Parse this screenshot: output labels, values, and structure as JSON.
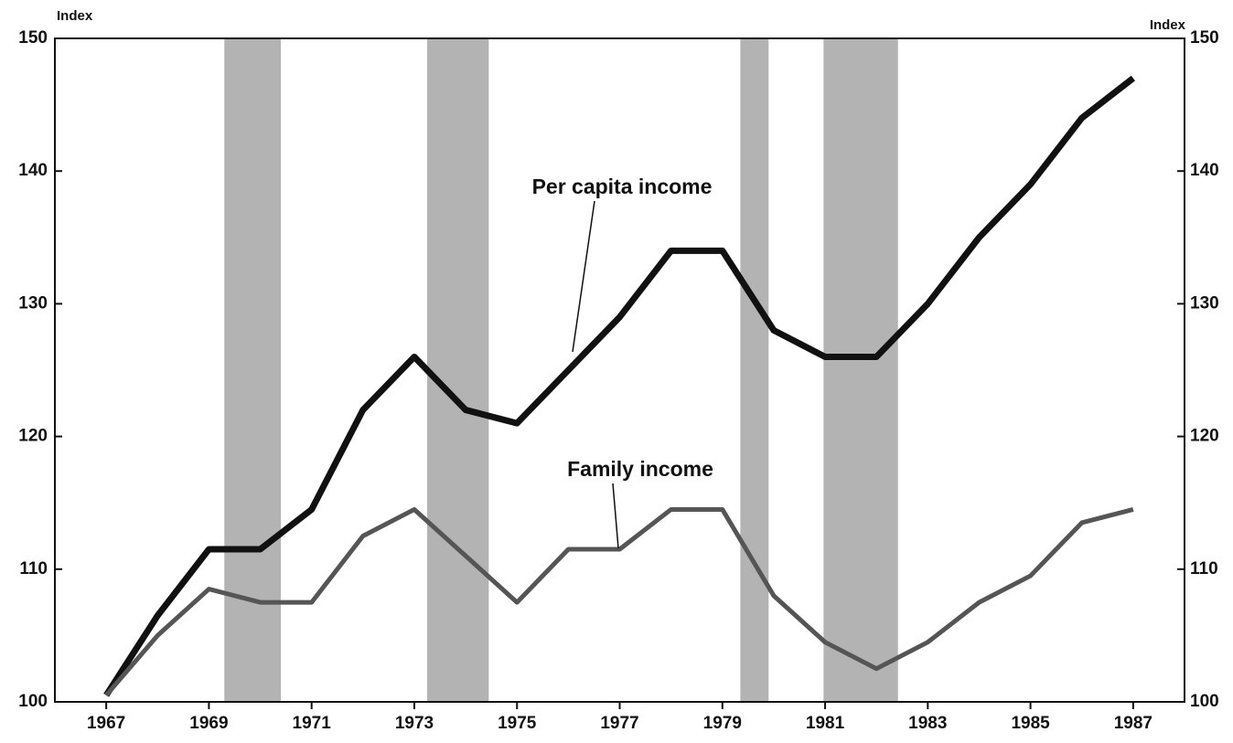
{
  "chart_data": {
    "type": "line",
    "y_axis_label": "Index",
    "y2_axis_label": "Index",
    "x": [
      1967,
      1968,
      1969,
      1970,
      1971,
      1972,
      1973,
      1974,
      1975,
      1976,
      1977,
      1978,
      1979,
      1980,
      1981,
      1982,
      1983,
      1984,
      1985,
      1986,
      1987
    ],
    "series": [
      {
        "name": "Per capita income",
        "color": "#111111",
        "values": [
          100.5,
          106.5,
          111.5,
          111.5,
          114.5,
          122,
          126,
          122,
          121,
          125,
          129,
          134,
          134,
          128,
          126,
          126,
          130,
          135,
          139,
          144,
          147
        ]
      },
      {
        "name": "Family income",
        "color": "#555555",
        "values": [
          100.5,
          105,
          108.5,
          107.5,
          107.5,
          112.5,
          114.5,
          111,
          107.5,
          111.5,
          111.5,
          114.5,
          114.5,
          108,
          104.5,
          102.5,
          104.5,
          107.5,
          109.5,
          113.5,
          114.5
        ]
      }
    ],
    "shaded_periods": [
      [
        1969.3,
        1970.4
      ],
      [
        1973.25,
        1974.45
      ],
      [
        1979.35,
        1979.9
      ],
      [
        1980.97,
        1982.42
      ]
    ],
    "shade_color": "#9a9a9a",
    "xlim": [
      1966,
      1988
    ],
    "xticks": [
      1967,
      1969,
      1971,
      1973,
      1975,
      1977,
      1979,
      1981,
      1983,
      1985,
      1987
    ],
    "ylim": [
      100,
      150
    ],
    "yticks": [
      100,
      110,
      120,
      130,
      140,
      150
    ],
    "y2lim": [
      100,
      150
    ],
    "y2ticks": [
      100,
      110,
      120,
      130,
      140,
      150
    ],
    "grid": false
  }
}
